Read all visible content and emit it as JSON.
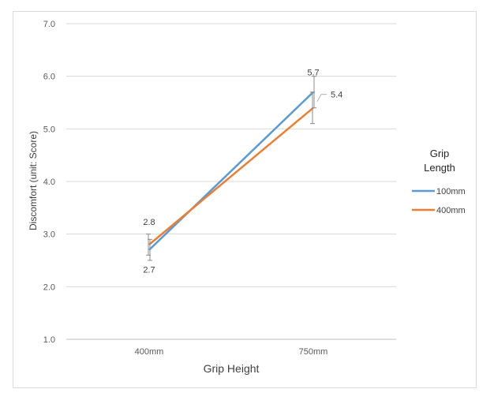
{
  "chart_data": {
    "type": "line",
    "categories": [
      "400mm",
      "750mm"
    ],
    "xlabel": "Grip Height",
    "ylabel": "Discomfort (unit: Score)",
    "ylim": [
      1.0,
      7.0
    ],
    "yticks": [
      "1.0",
      "2.0",
      "3.0",
      "4.0",
      "5.0",
      "6.0",
      "7.0"
    ],
    "grid": true,
    "legend": {
      "title_lines": [
        "Grip",
        "Length"
      ],
      "placement": "right"
    },
    "series": [
      {
        "name": "100mm",
        "color": "#5b9bd5",
        "values": [
          2.7,
          5.7
        ],
        "labels": [
          "2.7",
          "5.7"
        ],
        "error": [
          0.2,
          0.3
        ]
      },
      {
        "name": "400mm",
        "color": "#ed7d31",
        "values": [
          2.8,
          5.4
        ],
        "labels": [
          "2.8",
          "5.4"
        ],
        "error": [
          0.2,
          0.3
        ]
      }
    ]
  }
}
